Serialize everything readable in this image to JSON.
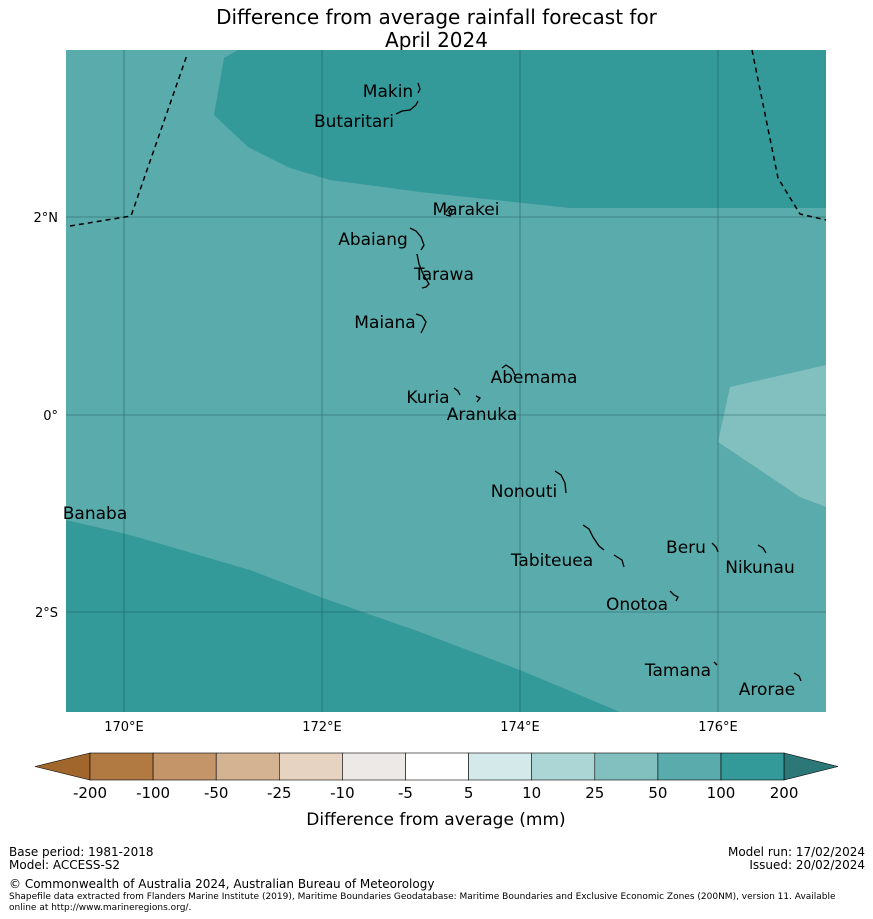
{
  "title": {
    "line1": "Difference from average rainfall forecast for",
    "line2": "April 2024"
  },
  "map": {
    "longitude_ticks": [
      "170°E",
      "172°E",
      "174°E",
      "176°E"
    ],
    "latitude_ticks": [
      "2°N",
      "0°",
      "2°S"
    ],
    "islands": [
      "Makin",
      "Butaritari",
      "Marakei",
      "Abaiang",
      "Tarawa",
      "Maiana",
      "Abemama",
      "Kuria",
      "Aranuka",
      "Nonouti",
      "Banaba",
      "Tabiteuea",
      "Beru",
      "Nikunau",
      "Onotoa",
      "Tamana",
      "Arorae"
    ],
    "colors": {
      "class_10_25": "#82bfbf",
      "class_25_50": "#5aabab",
      "class_50_100": "#339999"
    }
  },
  "colorbar": {
    "ticks": [
      "-200",
      "-100",
      "-50",
      "-25",
      "-10",
      "-5",
      "5",
      "10",
      "25",
      "50",
      "100",
      "200"
    ],
    "colors": [
      "#a0662c",
      "#b07a42",
      "#c39569",
      "#d4b393",
      "#e6d3c1",
      "#ede9e6",
      "#ffffff",
      "#d4eaea",
      "#acd6d5",
      "#82bfbf",
      "#5aabab",
      "#339999",
      "#2c7878"
    ],
    "label": "Difference from average (mm)"
  },
  "footer": {
    "base_period": "Base period: 1981-2018",
    "model": "Model: ACCESS-S2",
    "model_run": "Model run: 17/02/2024",
    "issued": "Issued: 20/02/2024",
    "copyright": "© Commonwealth of Australia 2024, Australian Bureau of Meteorology",
    "shapefile_line1": "Shapefile data extracted from Flanders Marine Institute (2019), Maritime Boundaries Geodatabase: Maritime Boundaries and Exclusive Economic Zones (200NM), version 11. Available",
    "shapefile_line2": "online at http://www.marineregions.org/."
  }
}
